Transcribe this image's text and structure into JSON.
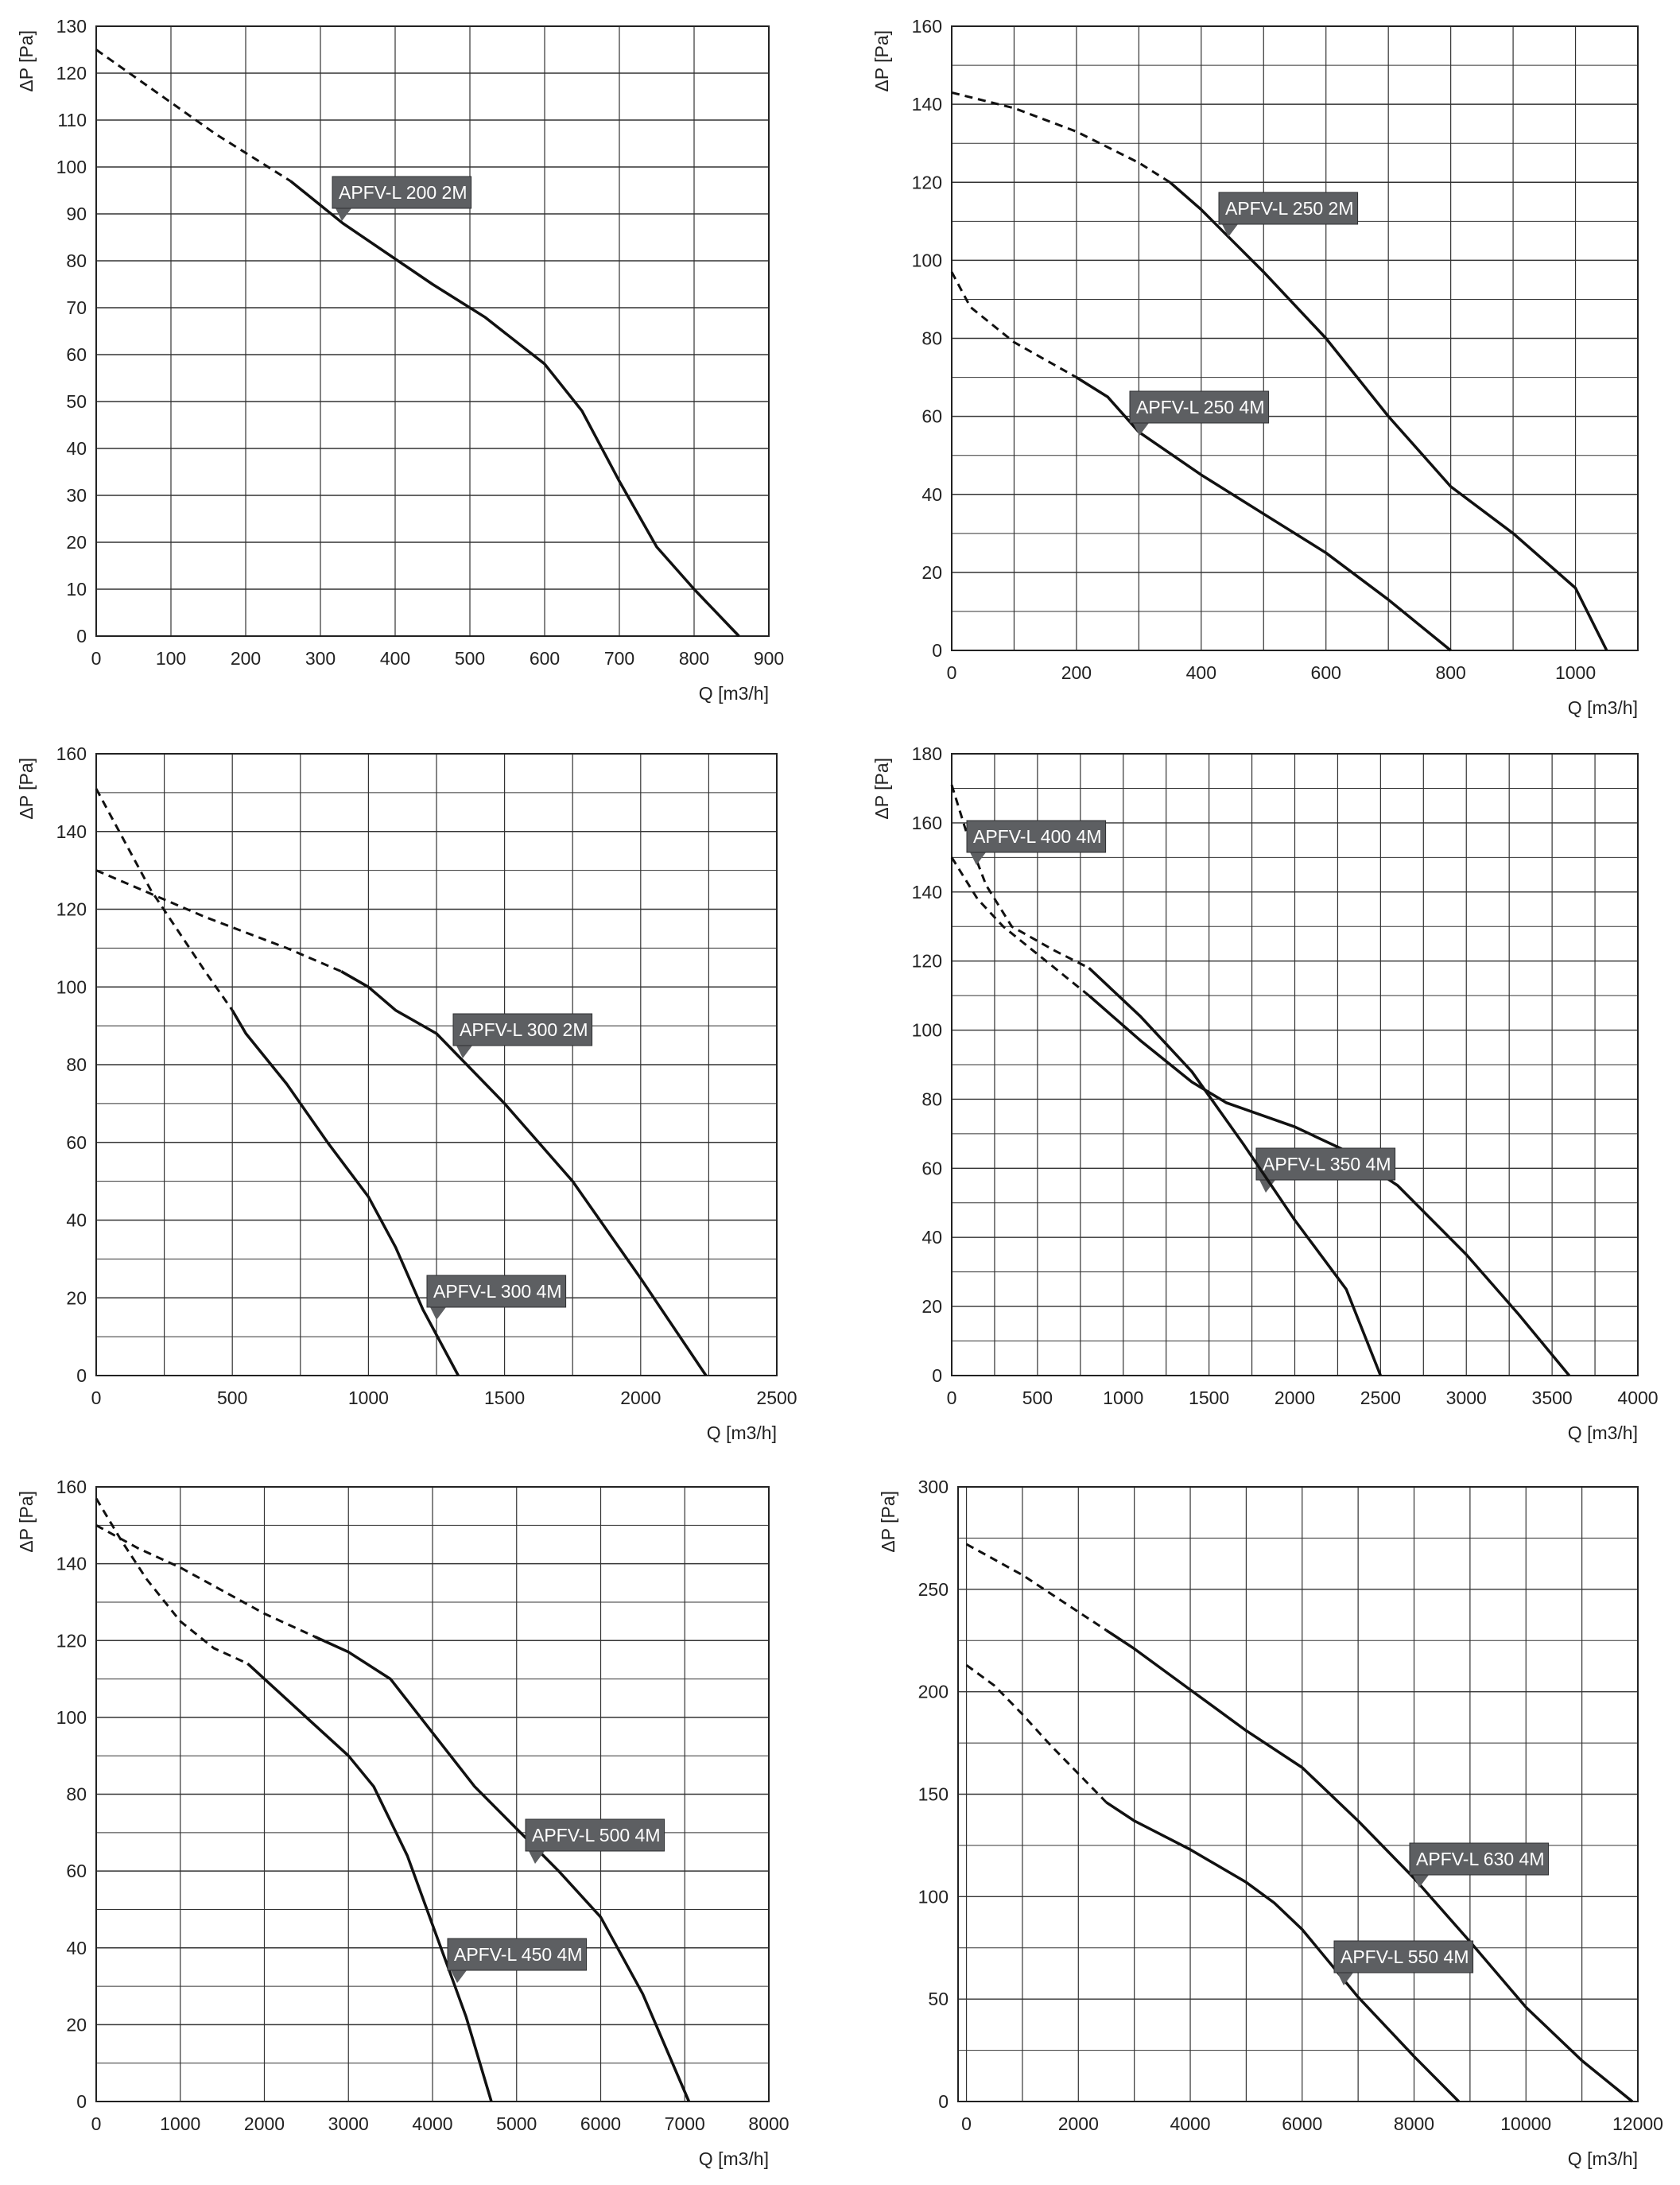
{
  "chart_data": [
    {
      "type": "line",
      "xlabel": "Q [m3/h]",
      "ylabel": "ΔP [Pa]",
      "xlim": [
        0,
        900
      ],
      "ylim": [
        0,
        130
      ],
      "xticks": [
        0,
        100,
        200,
        300,
        400,
        500,
        600,
        700,
        800,
        900
      ],
      "yticks": [
        0,
        10,
        20,
        30,
        40,
        50,
        60,
        70,
        80,
        90,
        100,
        110,
        120,
        130
      ],
      "grid": true,
      "series": [
        {
          "name": "APFV-L 200 2M",
          "x": [
            0,
            80,
            160,
            260,
            330,
            450,
            520,
            600,
            650,
            700,
            750,
            800,
            860
          ],
          "y": [
            125,
            116,
            107,
            97,
            88,
            75,
            68,
            58,
            48,
            33,
            19,
            10,
            0
          ],
          "dashed_until": 260
        }
      ]
    },
    {
      "type": "line",
      "xlabel": "Q [m3/h]",
      "ylabel": "ΔP [Pa]",
      "xlim": [
        0,
        1100
      ],
      "ylim": [
        0,
        160
      ],
      "xticks": [
        0,
        200,
        400,
        600,
        800,
        1000
      ],
      "yticks": [
        0,
        20,
        40,
        60,
        80,
        100,
        120,
        140,
        160
      ],
      "grid": true,
      "series": [
        {
          "name": "APFV-L 250 2M",
          "x": [
            0,
            100,
            200,
            300,
            350,
            400,
            450,
            500,
            600,
            700,
            800,
            900,
            1000,
            1050
          ],
          "y": [
            143,
            139,
            133,
            125,
            120,
            113,
            105,
            97,
            80,
            60,
            42,
            30,
            16,
            0
          ],
          "dashed_until": 350
        },
        {
          "name": "APFV-L 250 4M",
          "x": [
            0,
            30,
            100,
            200,
            250,
            300,
            400,
            500,
            600,
            700,
            800
          ],
          "y": [
            97,
            88,
            79,
            70,
            65,
            56,
            45,
            35,
            25,
            13,
            0
          ],
          "dashed_until": 200
        }
      ]
    },
    {
      "type": "line",
      "xlabel": "Q [m3/h]",
      "ylabel": "ΔP [Pa]",
      "xlim": [
        0,
        2500
      ],
      "ylim": [
        0,
        160
      ],
      "xticks": [
        0,
        500,
        1000,
        1500,
        2000,
        2500
      ],
      "yticks": [
        0,
        20,
        40,
        60,
        80,
        100,
        120,
        140,
        160
      ],
      "grid": true,
      "series": [
        {
          "name": "APFV-L 300 2M",
          "x": [
            0,
            400,
            700,
            900,
            1000,
            1100,
            1250,
            1500,
            1750,
            2000,
            2240
          ],
          "y": [
            130,
            118,
            110,
            104,
            100,
            94,
            88,
            70,
            50,
            25,
            0
          ],
          "dashed_until": 900
        },
        {
          "name": "APFV-L 300 4M",
          "x": [
            0,
            200,
            400,
            500,
            550,
            700,
            850,
            1000,
            1100,
            1200,
            1330
          ],
          "y": [
            151,
            125,
            104,
            94,
            88,
            75,
            60,
            46,
            33,
            17,
            0
          ],
          "dashed_until": 500
        }
      ]
    },
    {
      "type": "line",
      "xlabel": "Q [m3/h]",
      "ylabel": "ΔP [Pa]",
      "xlim": [
        0,
        4000
      ],
      "ylim": [
        0,
        180
      ],
      "xticks": [
        0,
        500,
        1000,
        1500,
        2000,
        2500,
        3000,
        3500,
        4000
      ],
      "yticks": [
        0,
        20,
        40,
        60,
        80,
        100,
        120,
        140,
        160,
        180
      ],
      "grid": true,
      "series": [
        {
          "name": "APFV-L 350 4M",
          "x": [
            0,
            150,
            300,
            500,
            700,
            800,
            1100,
            1400,
            1600,
            2000,
            2300,
            2600,
            3000,
            3300,
            3600
          ],
          "y": [
            150,
            138,
            130,
            122,
            114,
            110,
            97,
            85,
            79,
            72,
            65,
            55,
            35,
            18,
            0
          ],
          "dashed_until": 800
        },
        {
          "name": "APFV-L 400 4M",
          "x": [
            0,
            100,
            200,
            350,
            600,
            800,
            1100,
            1400,
            1700,
            2000,
            2300,
            2500
          ],
          "y": [
            171,
            155,
            142,
            130,
            123,
            118,
            104,
            88,
            67,
            45,
            25,
            0
          ],
          "dashed_until": 800
        }
      ]
    },
    {
      "type": "line",
      "xlabel": "Q [m3/h]",
      "ylabel": "ΔP [Pa]",
      "xlim": [
        0,
        8000
      ],
      "ylim": [
        0,
        160
      ],
      "xticks": [
        0,
        1000,
        2000,
        3000,
        4000,
        5000,
        6000,
        7000,
        8000
      ],
      "yticks": [
        0,
        20,
        40,
        60,
        80,
        100,
        120,
        140,
        160
      ],
      "grid": true,
      "series": [
        {
          "name": "APFV-L 500 4M",
          "x": [
            0,
            500,
            1000,
            1500,
            2000,
            2600,
            3000,
            3500,
            4000,
            4500,
            5000,
            5500,
            6000,
            6500,
            7050
          ],
          "y": [
            150,
            144,
            139,
            133,
            127,
            121,
            117,
            110,
            96,
            82,
            71,
            60,
            48,
            28,
            0
          ],
          "dashed_until": 2600
        },
        {
          "name": "APFV-L 450 4M",
          "x": [
            0,
            300,
            600,
            1000,
            1400,
            1800,
            2500,
            3000,
            3300,
            3700,
            4000,
            4200,
            4400,
            4700
          ],
          "y": [
            157,
            146,
            136,
            125,
            118,
            114,
            100,
            90,
            82,
            64,
            46,
            34,
            22,
            0
          ],
          "dashed_until": 1800
        }
      ]
    },
    {
      "type": "line",
      "xlabel": "Q [m3/h]",
      "ylabel": "ΔP [Pa]",
      "xlim": [
        -150,
        12000
      ],
      "ylim": [
        0,
        300
      ],
      "xticks": [
        0,
        2000,
        4000,
        6000,
        8000,
        10000,
        12000
      ],
      "yticks": [
        0,
        50,
        100,
        150,
        200,
        250,
        300
      ],
      "grid": true,
      "series": [
        {
          "name": "APFV-L 630 4M",
          "x": [
            0,
            1000,
            2000,
            2500,
            3000,
            4000,
            5000,
            6000,
            7000,
            8000,
            9000,
            10000,
            11000,
            11900
          ],
          "y": [
            272,
            257,
            239,
            230,
            221,
            201,
            181,
            163,
            137,
            109,
            78,
            46,
            20,
            0
          ],
          "dashed_until": 2500
        },
        {
          "name": "APFV-L 550 4M",
          "x": [
            0,
            500,
            1000,
            1500,
            2000,
            2500,
            3000,
            4000,
            5000,
            5500,
            6000,
            7000,
            8000,
            8800
          ],
          "y": [
            213,
            203,
            189,
            174,
            160,
            146,
            137,
            123,
            107,
            97,
            84,
            51,
            22,
            0
          ],
          "dashed_until": 2500
        }
      ]
    }
  ]
}
